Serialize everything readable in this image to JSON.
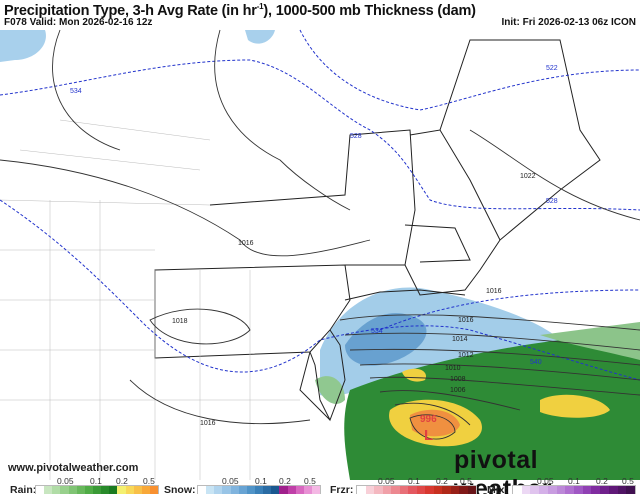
{
  "header": {
    "title_main": "Precipitation Type, 3-h Avg Rate (in hr",
    "title_sup": "-1",
    "title_rest": "), 1000-500 mb Thickness (dam)",
    "valid": "F078 Valid: Mon 2026-02-16 12z",
    "init": "Init: Fri 2026-02-13 06z ICON"
  },
  "map": {
    "thickness_labels": [
      "534",
      "528",
      "522",
      "528",
      "534",
      "540"
    ],
    "pressure_labels": [
      "1022",
      "1016",
      "1018",
      "1016",
      "1016",
      "1014",
      "1012",
      "1010",
      "1008",
      "1006",
      "1016"
    ],
    "low_center": {
      "pressure": "996",
      "symbol": "L"
    },
    "colors": {
      "thickness": "#2233cc",
      "isobar": "#333333",
      "snow": "#6aaad8",
      "rain": "#2e7d32",
      "heavy": "#f0d040",
      "low": "#e04040"
    }
  },
  "watermark": "www.pivotalweather.com",
  "brand": "pivotal weather",
  "legend": {
    "rain": {
      "label": "Rain:",
      "ticks": [
        "0.05",
        "0.1",
        "0.2",
        "0.5"
      ],
      "colors": [
        "#ffffff",
        "#c8e6c0",
        "#b0dca6",
        "#98d08c",
        "#80c474",
        "#68b85c",
        "#50ac46",
        "#3a9a36",
        "#288a2a",
        "#1a7a20",
        "#f4f070",
        "#f8d858",
        "#f8c048",
        "#f8a838",
        "#f89030"
      ]
    },
    "snow": {
      "label": "Snow:",
      "ticks": [
        "0.05",
        "0.1",
        "0.2",
        "0.5"
      ],
      "colors": [
        "#ffffff",
        "#c8e4f4",
        "#b0d4ee",
        "#98c4e6",
        "#80b4de",
        "#68a4d4",
        "#5094c8",
        "#3a80b8",
        "#2a6ca4",
        "#1a5890",
        "#a0208c",
        "#c040a8",
        "#d868c0",
        "#e890d4",
        "#f4b8e4"
      ]
    },
    "frzr": {
      "label": "Frzr:",
      "ticks": [
        "0.05",
        "0.1",
        "0.2",
        "0.5"
      ],
      "colors": [
        "#ffffff",
        "#f8d0d8",
        "#f4b8c0",
        "#f0a0a8",
        "#ec8890",
        "#e87078",
        "#e45860",
        "#e04848",
        "#d83830",
        "#c83020",
        "#b02818",
        "#982018",
        "#801818",
        "#681418"
      ]
    },
    "mix": {
      "label": "Mix:",
      "ticks": [
        "0.05",
        "0.1",
        "0.2",
        "0.5"
      ],
      "colors": [
        "#ffffff",
        "#ecd8f4",
        "#e0c4ee",
        "#d4b0e8",
        "#c89ce0",
        "#bc88d8",
        "#b070d0",
        "#a058c4",
        "#9040b4",
        "#802ca0",
        "#70208c",
        "#601878",
        "#501464",
        "#401050"
      ]
    }
  }
}
